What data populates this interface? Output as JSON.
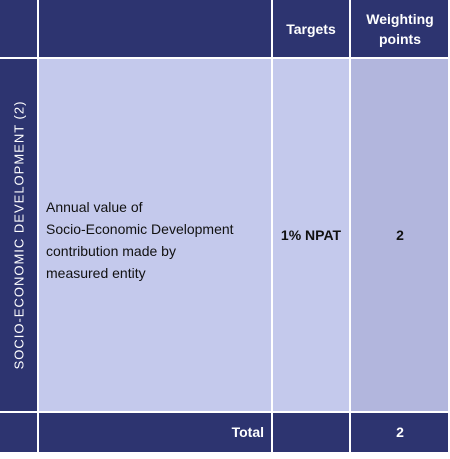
{
  "header": {
    "col_targets": "Targets",
    "col_weighting": "Weighting\npoints"
  },
  "section_label": "SOCIO-ECONOMIC DEVELOPMENT (2)",
  "row": {
    "description": "Annual value of\nSocio-Economic Development\ncontribution made by\nmeasured entity",
    "target": "1% NPAT",
    "points": "2"
  },
  "footer": {
    "label": "Total",
    "points": "2"
  },
  "colors": {
    "header_bg": "#2d3470",
    "body_light": "#c4c9ec",
    "body_mid": "#b2b6dd"
  }
}
